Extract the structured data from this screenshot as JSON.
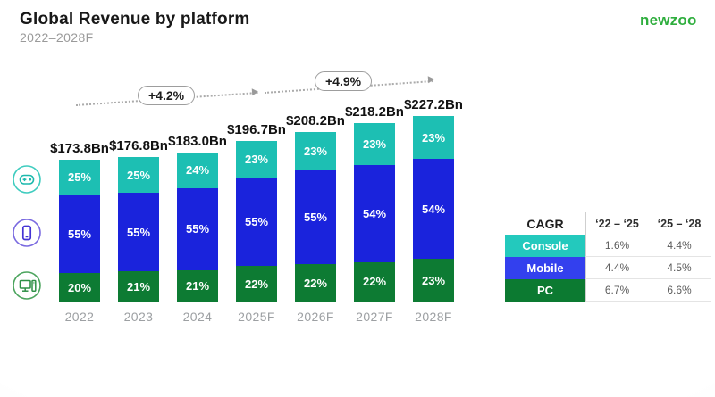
{
  "header": {
    "title": "Global Revenue by platform",
    "subtitle": "2022–2028F",
    "logo": "newzoo"
  },
  "icons": {
    "console": "gamepad-in-circle",
    "mobile": "smartphone-in-circle",
    "pc": "desktop-computer-in-circle"
  },
  "colors": {
    "console": "#1dbfb3",
    "mobile": "#1a23dc",
    "pc": "#0d7b33",
    "logo_green": "#2fae3e",
    "table_console": "#23c9bd",
    "table_mobile": "#3340ee",
    "table_pc": "#0c7a31"
  },
  "chart_data": {
    "type": "bar",
    "stacked": true,
    "title": "Global Revenue by platform",
    "subtitle": "2022–2028F",
    "categories": [
      "2022",
      "2023",
      "2024",
      "2025F",
      "2026F",
      "2027F",
      "2028F"
    ],
    "totals_bn": [
      173.8,
      176.8,
      183.0,
      196.7,
      208.2,
      218.2,
      227.2
    ],
    "total_labels": [
      "$173.8Bn",
      "$176.8Bn",
      "$183.0Bn",
      "$196.7Bn",
      "$208.2Bn",
      "$218.2Bn",
      "$227.2Bn"
    ],
    "series": [
      {
        "name": "Console",
        "color": "#1dbfb3",
        "values_pct": [
          25,
          25,
          24,
          23,
          23,
          23,
          23
        ]
      },
      {
        "name": "Mobile",
        "color": "#1a23dc",
        "values_pct": [
          55,
          55,
          55,
          55,
          55,
          54,
          54
        ]
      },
      {
        "name": "PC",
        "color": "#0d7b33",
        "values_pct": [
          20,
          21,
          21,
          22,
          22,
          22,
          23
        ]
      }
    ],
    "cagr_pills": [
      "+4.2%",
      "+4.9%"
    ],
    "legend_position": "left-icons",
    "grid": false,
    "ylabel": "",
    "xlabel": ""
  },
  "cagr_table": {
    "header": [
      "CAGR",
      "‘22 – ‘25",
      "‘25 – ‘28"
    ],
    "rows": [
      {
        "label": "Console",
        "color": "#23c9bd",
        "values": [
          "1.6%",
          "4.4%"
        ]
      },
      {
        "label": "Mobile",
        "color": "#3340ee",
        "values": [
          "4.4%",
          "4.5%"
        ]
      },
      {
        "label": "PC",
        "color": "#0c7a31",
        "values": [
          "6.7%",
          "6.6%"
        ]
      }
    ]
  }
}
